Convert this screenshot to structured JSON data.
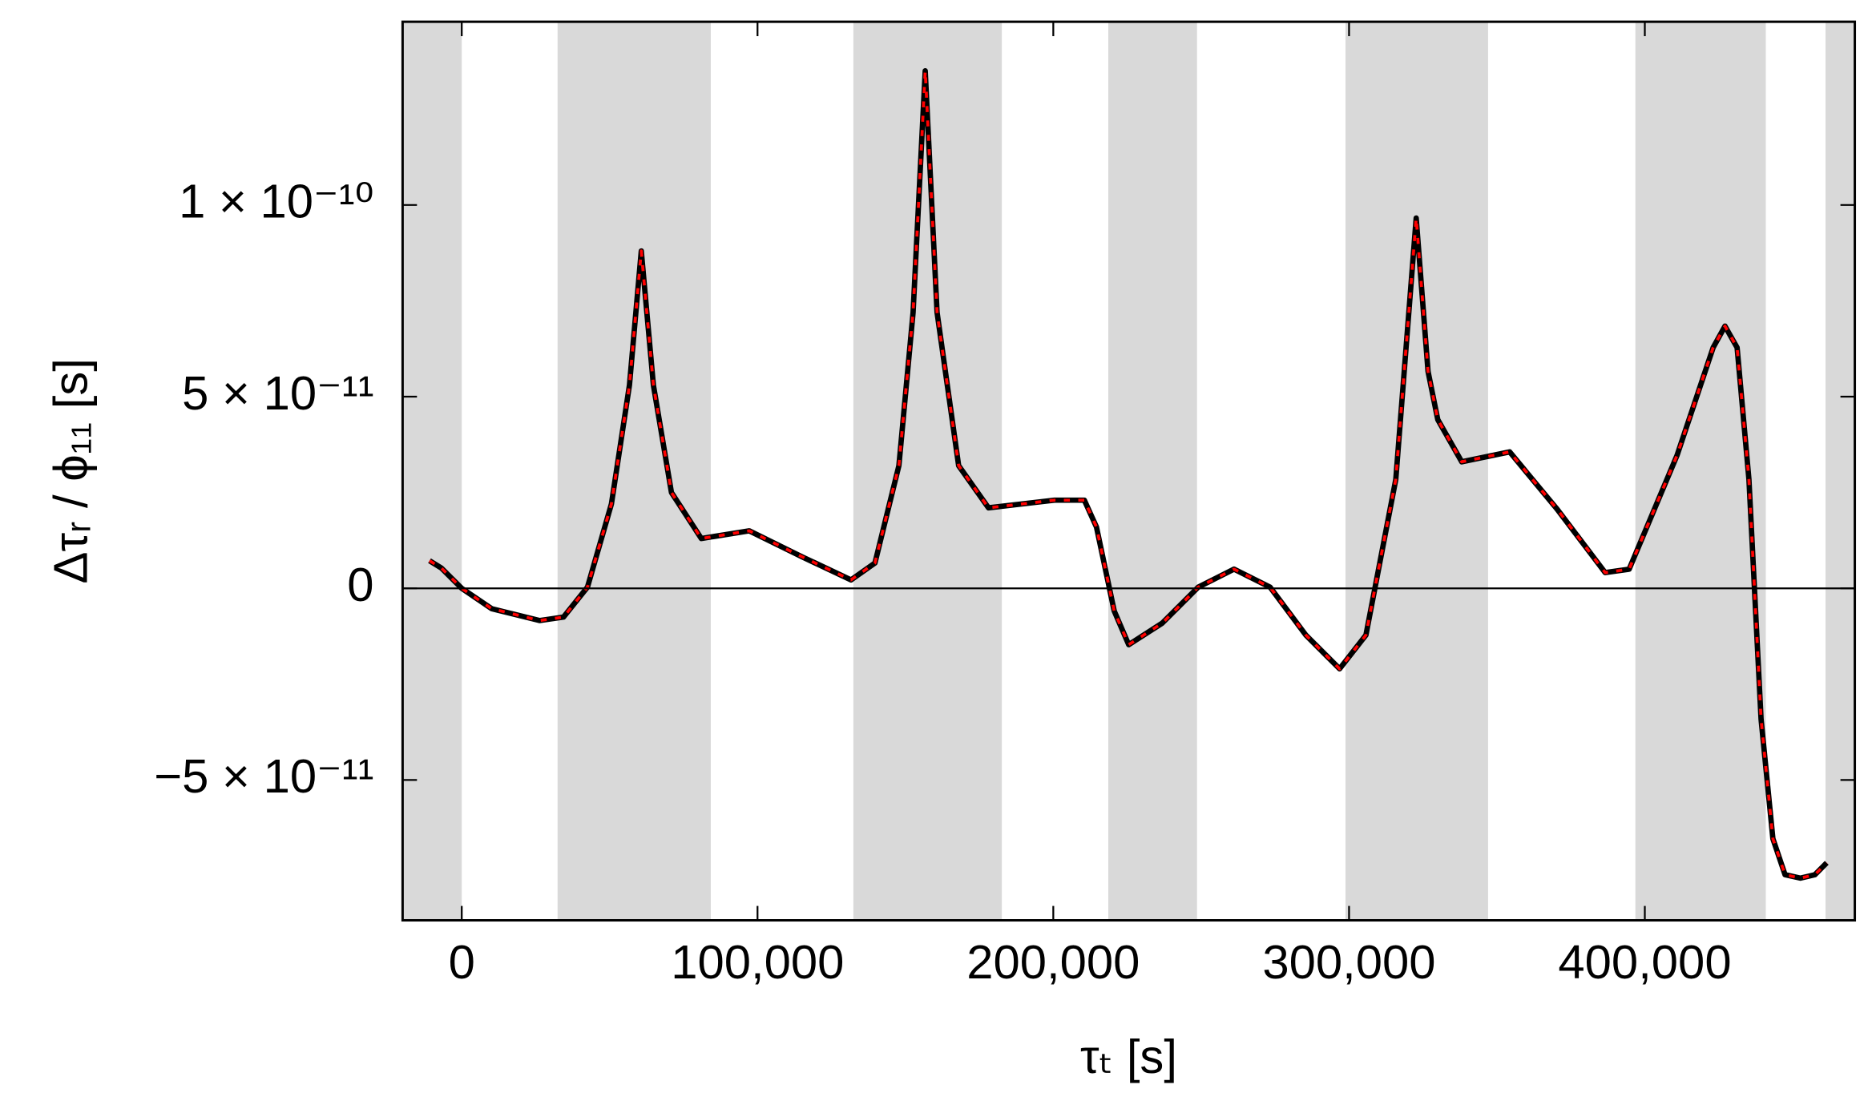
{
  "chart_data": {
    "type": "line",
    "xlabel": "τₜ [s]",
    "ylabel": "Δτᵣ / ϕ₁₁ [s]",
    "xlim": [
      -20000,
      471000
    ],
    "ylim": [
      -8.66e-11,
      1.478e-10
    ],
    "xticks": [
      0,
      {
        "value": 100000,
        "label": "100,000"
      },
      {
        "value": 200000,
        "label": "200,000"
      },
      {
        "value": 300000,
        "label": "300,000"
      },
      {
        "value": 400000,
        "label": "400,000"
      }
    ],
    "yticks": [
      {
        "value": -5e-11,
        "label": "−5 × 10⁻¹¹"
      },
      0,
      {
        "value": 5e-11,
        "label": "5 × 10⁻¹¹"
      },
      {
        "value": 1e-10,
        "label": "1 × 10⁻¹⁰"
      }
    ],
    "band_color": "#d9d9d9",
    "bands": [
      [
        -20000,
        0
      ],
      [
        32400,
        84200
      ],
      [
        132400,
        182600
      ],
      [
        218600,
        248600
      ],
      [
        298800,
        347000
      ],
      [
        396800,
        440900
      ],
      [
        461100,
        471000
      ]
    ],
    "x": [
      -10900,
      -6900,
      0,
      10100,
      26300,
      34400,
      42500,
      50600,
      56700,
      60700,
      64800,
      70900,
      81000,
      97200,
      115400,
      131600,
      139700,
      147800,
      152600,
      156700,
      160700,
      168000,
      178100,
      200400,
      210500,
      214600,
      220600,
      225500,
      236800,
      249000,
      261100,
      273300,
      285400,
      296800,
      305700,
      315800,
      322700,
      326700,
      330000,
      338100,
      354300,
      370400,
      386600,
      394700,
      410900,
      423100,
      427100,
      431200,
      435200,
      439300,
      443300,
      447400,
      452600,
      457500,
      461500
    ],
    "series": [
      {
        "color": "#000000",
        "dashed": false,
        "values": [
          7.2e-12,
          5.3e-12,
          0,
          -5.3e-12,
          -8.4e-12,
          -7.5e-12,
          3e-13,
          2.2e-11,
          5.3e-11,
          8.8e-11,
          5.3e-11,
          2.5e-11,
          1.3e-11,
          1.5e-11,
          8.1e-12,
          2.2e-12,
          6.6e-12,
          3.2e-11,
          7.2e-11,
          1.35e-10,
          7.2e-11,
          3.2e-11,
          2.1e-11,
          2.3e-11,
          2.3e-11,
          1.6e-11,
          -5.9e-12,
          -1.47e-11,
          -9.1e-12,
          3e-13,
          5e-12,
          3e-13,
          -1.22e-11,
          -2.1e-11,
          -1.22e-11,
          2.84e-11,
          9.66e-11,
          5.66e-11,
          4.4e-11,
          3.3e-11,
          3.56e-11,
          2.06e-11,
          4.1e-12,
          5e-12,
          3.47e-11,
          6.28e-11,
          6.84e-11,
          6.28e-11,
          2.84e-11,
          -3.41e-11,
          -6.53e-11,
          -7.47e-11,
          -7.56e-11,
          -7.47e-11,
          -7.16e-11
        ]
      },
      {
        "color": "#ff0000",
        "dashed": true,
        "values": [
          7.2e-12,
          5.3e-12,
          0,
          -5.3e-12,
          -8.4e-12,
          -7.5e-12,
          3e-13,
          2.2e-11,
          5.3e-11,
          8.8e-11,
          5.3e-11,
          2.5e-11,
          1.3e-11,
          1.5e-11,
          8.1e-12,
          2.2e-12,
          6.6e-12,
          3.2e-11,
          7.2e-11,
          1.35e-10,
          7.2e-11,
          3.2e-11,
          2.1e-11,
          2.3e-11,
          2.3e-11,
          1.6e-11,
          -5.9e-12,
          -1.47e-11,
          -9.1e-12,
          3e-13,
          5e-12,
          3e-13,
          -1.22e-11,
          -2.1e-11,
          -1.22e-11,
          2.84e-11,
          9.66e-11,
          5.66e-11,
          4.4e-11,
          3.3e-11,
          3.56e-11,
          2.06e-11,
          4.1e-12,
          5e-12,
          3.47e-11,
          6.28e-11,
          6.84e-11,
          6.28e-11,
          2.84e-11,
          -3.41e-11,
          -6.53e-11,
          -7.47e-11,
          -7.56e-11,
          -7.47e-11,
          -7.16e-11
        ]
      }
    ]
  }
}
